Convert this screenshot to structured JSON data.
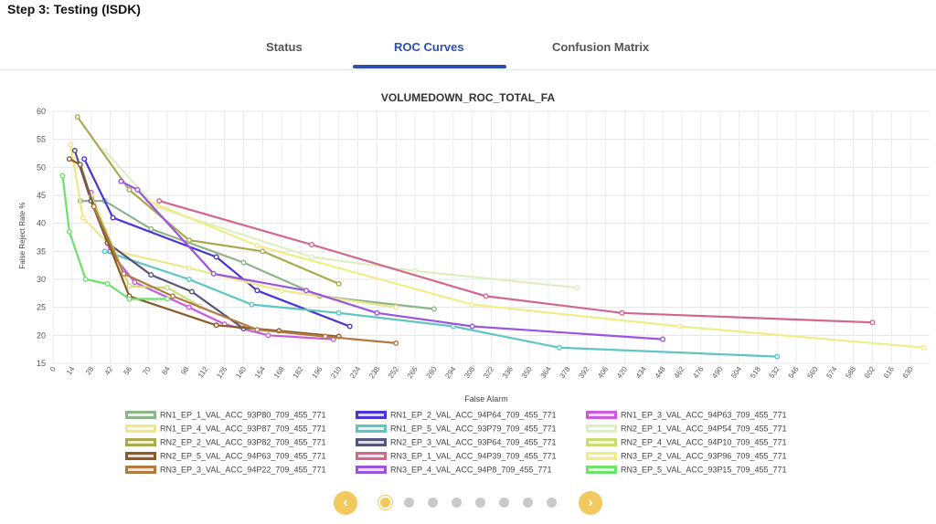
{
  "page": {
    "title": "Step 3: Testing (ISDK)"
  },
  "tabs": [
    {
      "label": "Status",
      "active": false
    },
    {
      "label": "ROC Curves",
      "active": true
    },
    {
      "label": "Confusion Matrix",
      "active": false
    }
  ],
  "pager": {
    "prev_icon": "chevron-left-icon",
    "next_icon": "chevron-right-icon",
    "prev_glyph": "‹",
    "next_glyph": "›",
    "total_pages": 8,
    "current_page": 1
  },
  "chart_data": {
    "type": "line",
    "title": "VOLUMEDOWN_ROC_TOTAL_FA",
    "xlabel": "False Alarm",
    "ylabel": "False Reject Rate %",
    "xlim": [
      0,
      644
    ],
    "ylim": [
      15,
      60
    ],
    "x_ticks": [
      0,
      14,
      28,
      42,
      56,
      70,
      84,
      98,
      112,
      126,
      140,
      154,
      168,
      182,
      196,
      210,
      224,
      238,
      252,
      266,
      280,
      294,
      308,
      322,
      336,
      350,
      364,
      378,
      392,
      406,
      420,
      434,
      448,
      462,
      476,
      490,
      504,
      518,
      532,
      546,
      560,
      574,
      588,
      602,
      616,
      630
    ],
    "y_ticks": [
      15,
      20,
      25,
      30,
      35,
      40,
      45,
      50,
      55,
      60
    ],
    "grid": true,
    "legend_position": "bottom",
    "series": [
      {
        "name": "RN1_EP_1_VAL_ACC_93P80_709_455_771",
        "color": "#8db48a",
        "points": [
          [
            20,
            44
          ],
          [
            38,
            44
          ],
          [
            72,
            39
          ],
          [
            140,
            33
          ],
          [
            196,
            27
          ],
          [
            280,
            24.7
          ]
        ]
      },
      {
        "name": "RN1_EP_2_VAL_ACC_94P64_709_455_771",
        "color": "#4a35d4",
        "points": [
          [
            23,
            51.5
          ],
          [
            44,
            41
          ],
          [
            120,
            34
          ],
          [
            150,
            28
          ],
          [
            218,
            21.6
          ]
        ]
      },
      {
        "name": "RN1_EP_3_VAL_ACC_94P63_709_455_771",
        "color": "#c85ae0",
        "points": [
          [
            28,
            45.5
          ],
          [
            42,
            35
          ],
          [
            60,
            29.5
          ],
          [
            100,
            25
          ],
          [
            126,
            22
          ],
          [
            158,
            20
          ],
          [
            206,
            19.3
          ]
        ]
      },
      {
        "name": "RN1_EP_4_VAL_ACC_93P87_709_455_771",
        "color": "#efe58c",
        "points": [
          [
            13,
            54
          ],
          [
            22,
            41
          ],
          [
            46,
            35
          ],
          [
            100,
            32
          ],
          [
            168,
            28
          ],
          [
            252,
            25
          ]
        ]
      },
      {
        "name": "RN1_EP_5_VAL_ACC_93P79_709_455_771",
        "color": "#5ec4c4",
        "points": [
          [
            38,
            35
          ],
          [
            100,
            30
          ],
          [
            146,
            25.5
          ],
          [
            210,
            24
          ],
          [
            294,
            21.6
          ],
          [
            372,
            17.8
          ],
          [
            532,
            16.2
          ]
        ]
      },
      {
        "name": "RN2_EP_1_VAL_ACC_94P54_709_455_771",
        "color": "#dcefc0",
        "points": [
          [
            38,
            53
          ],
          [
            75,
            43
          ],
          [
            190,
            34
          ],
          [
            266,
            31.5
          ],
          [
            385,
            28.5
          ]
        ]
      },
      {
        "name": "RN2_EP_2_VAL_ACC_93P82_709_455_771",
        "color": "#a9a950",
        "points": [
          [
            18,
            59
          ],
          [
            56,
            46
          ],
          [
            100,
            37
          ],
          [
            154,
            35
          ],
          [
            210,
            29.2
          ]
        ]
      },
      {
        "name": "RN2_EP_3_VAL_ACC_93P64_709_455_771",
        "color": "#55557a",
        "points": [
          [
            16,
            53
          ],
          [
            28,
            44
          ],
          [
            40,
            36.5
          ],
          [
            72,
            30.8
          ],
          [
            102,
            27.8
          ],
          [
            140,
            21.2
          ]
        ]
      },
      {
        "name": "RN2_EP_4_VAL_ACC_94P10_709_455_771",
        "color": "#c8dc72",
        "points": [
          [
            28,
            45
          ],
          [
            56,
            28.8
          ],
          [
            84,
            28.5
          ],
          [
            108,
            25.2
          ]
        ]
      },
      {
        "name": "RN2_EP_5_VAL_ACC_94P63_709_455_771",
        "color": "#8b5a25",
        "points": [
          [
            12,
            51.5
          ],
          [
            20,
            50.5
          ],
          [
            30,
            43
          ],
          [
            56,
            27
          ],
          [
            120,
            21.8
          ],
          [
            166,
            20.8
          ],
          [
            210,
            19.8
          ]
        ]
      },
      {
        "name": "RN3_EP_1_VAL_ACC_94P39_709_455_771",
        "color": "#d4668e",
        "points": [
          [
            78,
            44
          ],
          [
            190,
            36.2
          ],
          [
            318,
            27
          ],
          [
            418,
            24
          ],
          [
            602,
            22.3
          ]
        ]
      },
      {
        "name": "RN3_EP_2_VAL_ACC_93P96_709_455_771",
        "color": "#f0ec86",
        "points": [
          [
            70,
            44
          ],
          [
            150,
            36
          ],
          [
            308,
            25.5
          ],
          [
            460,
            21.6
          ],
          [
            640,
            17.8
          ]
        ]
      },
      {
        "name": "RN3_EP_3_VAL_ACC_94P22_709_455_771",
        "color": "#b07a40",
        "points": [
          [
            30,
            43
          ],
          [
            52,
            31
          ],
          [
            88,
            27
          ],
          [
            150,
            21
          ],
          [
            200,
            19.8
          ],
          [
            252,
            18.6
          ]
        ]
      },
      {
        "name": "RN3_EP_4_VAL_ACC_94P8_709_455_771",
        "color": "#9955e0",
        "points": [
          [
            50,
            47.5
          ],
          [
            62,
            46
          ],
          [
            118,
            31
          ],
          [
            186,
            28
          ],
          [
            238,
            24
          ],
          [
            308,
            21.6
          ],
          [
            448,
            19.3
          ]
        ]
      },
      {
        "name": "RN3_EP_5_VAL_ACC_93P15_709_455_771",
        "color": "#6ee06e",
        "points": [
          [
            7,
            48.5
          ],
          [
            12,
            38.5
          ],
          [
            24,
            30
          ],
          [
            40,
            29.2
          ],
          [
            56,
            26.5
          ],
          [
            84,
            26.5
          ]
        ]
      }
    ]
  }
}
